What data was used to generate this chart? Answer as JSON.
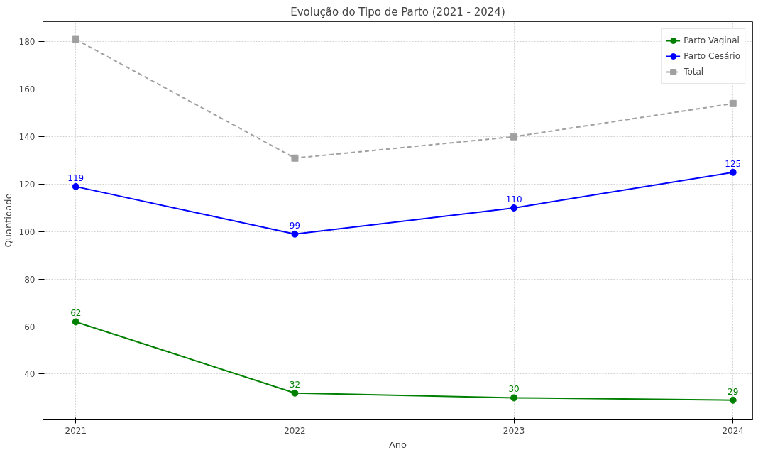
{
  "chart_data": {
    "type": "line",
    "title": "Evolução do Tipo de Parto (2021 - 2024)",
    "xlabel": "Ano",
    "ylabel": "Quantidade",
    "x": [
      2021,
      2022,
      2023,
      2024
    ],
    "series": [
      {
        "name": "Parto Vaginal",
        "color": "#008000",
        "values": [
          62,
          32,
          30,
          29
        ],
        "value_labels": [
          "62",
          "32",
          "30",
          "29"
        ],
        "marker": "circle",
        "line_style": "solid"
      },
      {
        "name": "Parto Cesário",
        "color": "#0000ff",
        "values": [
          119,
          99,
          110,
          125
        ],
        "value_labels": [
          "119",
          "99",
          "110",
          "125"
        ],
        "marker": "circle",
        "line_style": "solid"
      },
      {
        "name": "Total",
        "color": "#a0a0a0",
        "values": [
          181,
          131,
          140,
          154
        ],
        "marker": "square",
        "line_style": "dashed"
      }
    ],
    "xlim": [
      2020.85,
      2024.09
    ],
    "ylim": [
      21,
      188.5
    ],
    "xticks": [
      2021,
      2022,
      2023,
      2024
    ],
    "yticks": [
      40,
      60,
      80,
      100,
      120,
      140,
      160,
      180
    ],
    "grid": true,
    "legend": "top right"
  }
}
